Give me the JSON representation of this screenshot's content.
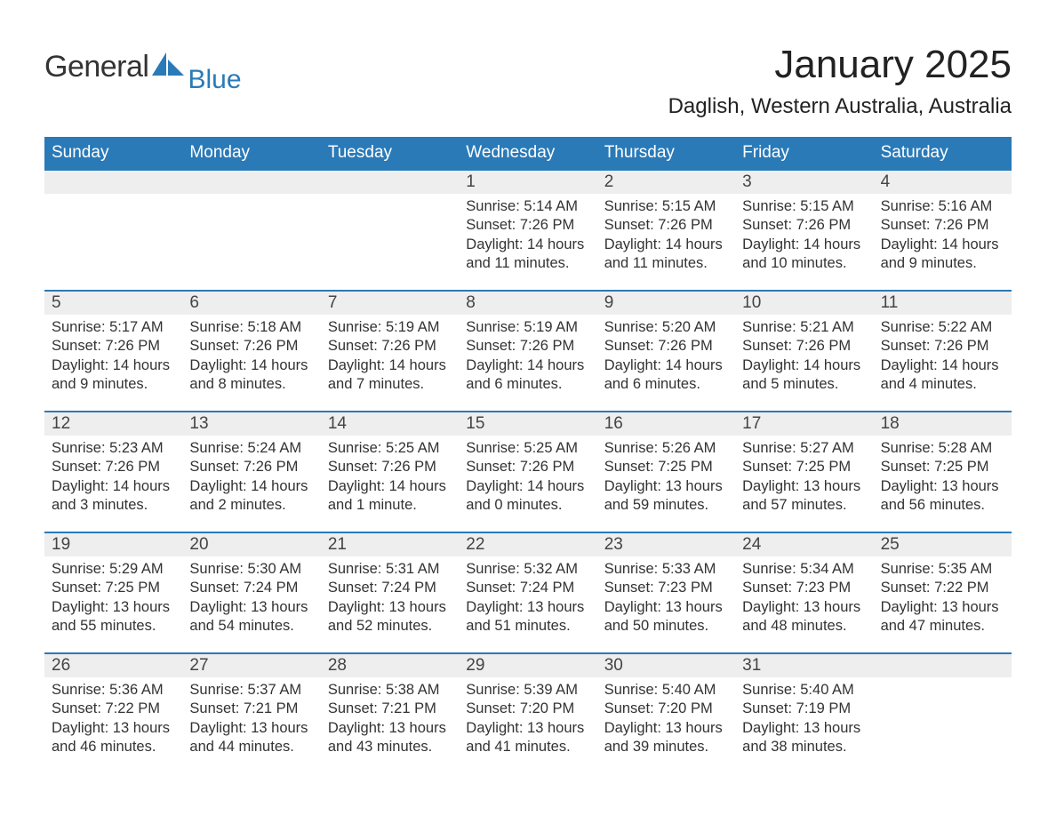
{
  "logo": {
    "main": "General",
    "sub": "Blue"
  },
  "title": "January 2025",
  "location": "Daglish, Western Australia, Australia",
  "colors": {
    "header_bg": "#2a7ab8",
    "header_text": "#ffffff",
    "daynum_bg": "#eeeeee",
    "border": "#2a7ab8",
    "text": "#333333",
    "logo_sub": "#2a7ab8",
    "background": "#ffffff"
  },
  "day_names": [
    "Sunday",
    "Monday",
    "Tuesday",
    "Wednesday",
    "Thursday",
    "Friday",
    "Saturday"
  ],
  "weeks": [
    {
      "days": [
        {
          "num": "",
          "sunrise": "",
          "sunset": "",
          "daylight": ""
        },
        {
          "num": "",
          "sunrise": "",
          "sunset": "",
          "daylight": ""
        },
        {
          "num": "",
          "sunrise": "",
          "sunset": "",
          "daylight": ""
        },
        {
          "num": "1",
          "sunrise": "Sunrise: 5:14 AM",
          "sunset": "Sunset: 7:26 PM",
          "daylight": "Daylight: 14 hours and 11 minutes."
        },
        {
          "num": "2",
          "sunrise": "Sunrise: 5:15 AM",
          "sunset": "Sunset: 7:26 PM",
          "daylight": "Daylight: 14 hours and 11 minutes."
        },
        {
          "num": "3",
          "sunrise": "Sunrise: 5:15 AM",
          "sunset": "Sunset: 7:26 PM",
          "daylight": "Daylight: 14 hours and 10 minutes."
        },
        {
          "num": "4",
          "sunrise": "Sunrise: 5:16 AM",
          "sunset": "Sunset: 7:26 PM",
          "daylight": "Daylight: 14 hours and 9 minutes."
        }
      ]
    },
    {
      "days": [
        {
          "num": "5",
          "sunrise": "Sunrise: 5:17 AM",
          "sunset": "Sunset: 7:26 PM",
          "daylight": "Daylight: 14 hours and 9 minutes."
        },
        {
          "num": "6",
          "sunrise": "Sunrise: 5:18 AM",
          "sunset": "Sunset: 7:26 PM",
          "daylight": "Daylight: 14 hours and 8 minutes."
        },
        {
          "num": "7",
          "sunrise": "Sunrise: 5:19 AM",
          "sunset": "Sunset: 7:26 PM",
          "daylight": "Daylight: 14 hours and 7 minutes."
        },
        {
          "num": "8",
          "sunrise": "Sunrise: 5:19 AM",
          "sunset": "Sunset: 7:26 PM",
          "daylight": "Daylight: 14 hours and 6 minutes."
        },
        {
          "num": "9",
          "sunrise": "Sunrise: 5:20 AM",
          "sunset": "Sunset: 7:26 PM",
          "daylight": "Daylight: 14 hours and 6 minutes."
        },
        {
          "num": "10",
          "sunrise": "Sunrise: 5:21 AM",
          "sunset": "Sunset: 7:26 PM",
          "daylight": "Daylight: 14 hours and 5 minutes."
        },
        {
          "num": "11",
          "sunrise": "Sunrise: 5:22 AM",
          "sunset": "Sunset: 7:26 PM",
          "daylight": "Daylight: 14 hours and 4 minutes."
        }
      ]
    },
    {
      "days": [
        {
          "num": "12",
          "sunrise": "Sunrise: 5:23 AM",
          "sunset": "Sunset: 7:26 PM",
          "daylight": "Daylight: 14 hours and 3 minutes."
        },
        {
          "num": "13",
          "sunrise": "Sunrise: 5:24 AM",
          "sunset": "Sunset: 7:26 PM",
          "daylight": "Daylight: 14 hours and 2 minutes."
        },
        {
          "num": "14",
          "sunrise": "Sunrise: 5:25 AM",
          "sunset": "Sunset: 7:26 PM",
          "daylight": "Daylight: 14 hours and 1 minute."
        },
        {
          "num": "15",
          "sunrise": "Sunrise: 5:25 AM",
          "sunset": "Sunset: 7:26 PM",
          "daylight": "Daylight: 14 hours and 0 minutes."
        },
        {
          "num": "16",
          "sunrise": "Sunrise: 5:26 AM",
          "sunset": "Sunset: 7:25 PM",
          "daylight": "Daylight: 13 hours and 59 minutes."
        },
        {
          "num": "17",
          "sunrise": "Sunrise: 5:27 AM",
          "sunset": "Sunset: 7:25 PM",
          "daylight": "Daylight: 13 hours and 57 minutes."
        },
        {
          "num": "18",
          "sunrise": "Sunrise: 5:28 AM",
          "sunset": "Sunset: 7:25 PM",
          "daylight": "Daylight: 13 hours and 56 minutes."
        }
      ]
    },
    {
      "days": [
        {
          "num": "19",
          "sunrise": "Sunrise: 5:29 AM",
          "sunset": "Sunset: 7:25 PM",
          "daylight": "Daylight: 13 hours and 55 minutes."
        },
        {
          "num": "20",
          "sunrise": "Sunrise: 5:30 AM",
          "sunset": "Sunset: 7:24 PM",
          "daylight": "Daylight: 13 hours and 54 minutes."
        },
        {
          "num": "21",
          "sunrise": "Sunrise: 5:31 AM",
          "sunset": "Sunset: 7:24 PM",
          "daylight": "Daylight: 13 hours and 52 minutes."
        },
        {
          "num": "22",
          "sunrise": "Sunrise: 5:32 AM",
          "sunset": "Sunset: 7:24 PM",
          "daylight": "Daylight: 13 hours and 51 minutes."
        },
        {
          "num": "23",
          "sunrise": "Sunrise: 5:33 AM",
          "sunset": "Sunset: 7:23 PM",
          "daylight": "Daylight: 13 hours and 50 minutes."
        },
        {
          "num": "24",
          "sunrise": "Sunrise: 5:34 AM",
          "sunset": "Sunset: 7:23 PM",
          "daylight": "Daylight: 13 hours and 48 minutes."
        },
        {
          "num": "25",
          "sunrise": "Sunrise: 5:35 AM",
          "sunset": "Sunset: 7:22 PM",
          "daylight": "Daylight: 13 hours and 47 minutes."
        }
      ]
    },
    {
      "days": [
        {
          "num": "26",
          "sunrise": "Sunrise: 5:36 AM",
          "sunset": "Sunset: 7:22 PM",
          "daylight": "Daylight: 13 hours and 46 minutes."
        },
        {
          "num": "27",
          "sunrise": "Sunrise: 5:37 AM",
          "sunset": "Sunset: 7:21 PM",
          "daylight": "Daylight: 13 hours and 44 minutes."
        },
        {
          "num": "28",
          "sunrise": "Sunrise: 5:38 AM",
          "sunset": "Sunset: 7:21 PM",
          "daylight": "Daylight: 13 hours and 43 minutes."
        },
        {
          "num": "29",
          "sunrise": "Sunrise: 5:39 AM",
          "sunset": "Sunset: 7:20 PM",
          "daylight": "Daylight: 13 hours and 41 minutes."
        },
        {
          "num": "30",
          "sunrise": "Sunrise: 5:40 AM",
          "sunset": "Sunset: 7:20 PM",
          "daylight": "Daylight: 13 hours and 39 minutes."
        },
        {
          "num": "31",
          "sunrise": "Sunrise: 5:40 AM",
          "sunset": "Sunset: 7:19 PM",
          "daylight": "Daylight: 13 hours and 38 minutes."
        },
        {
          "num": "",
          "sunrise": "",
          "sunset": "",
          "daylight": ""
        }
      ]
    }
  ]
}
